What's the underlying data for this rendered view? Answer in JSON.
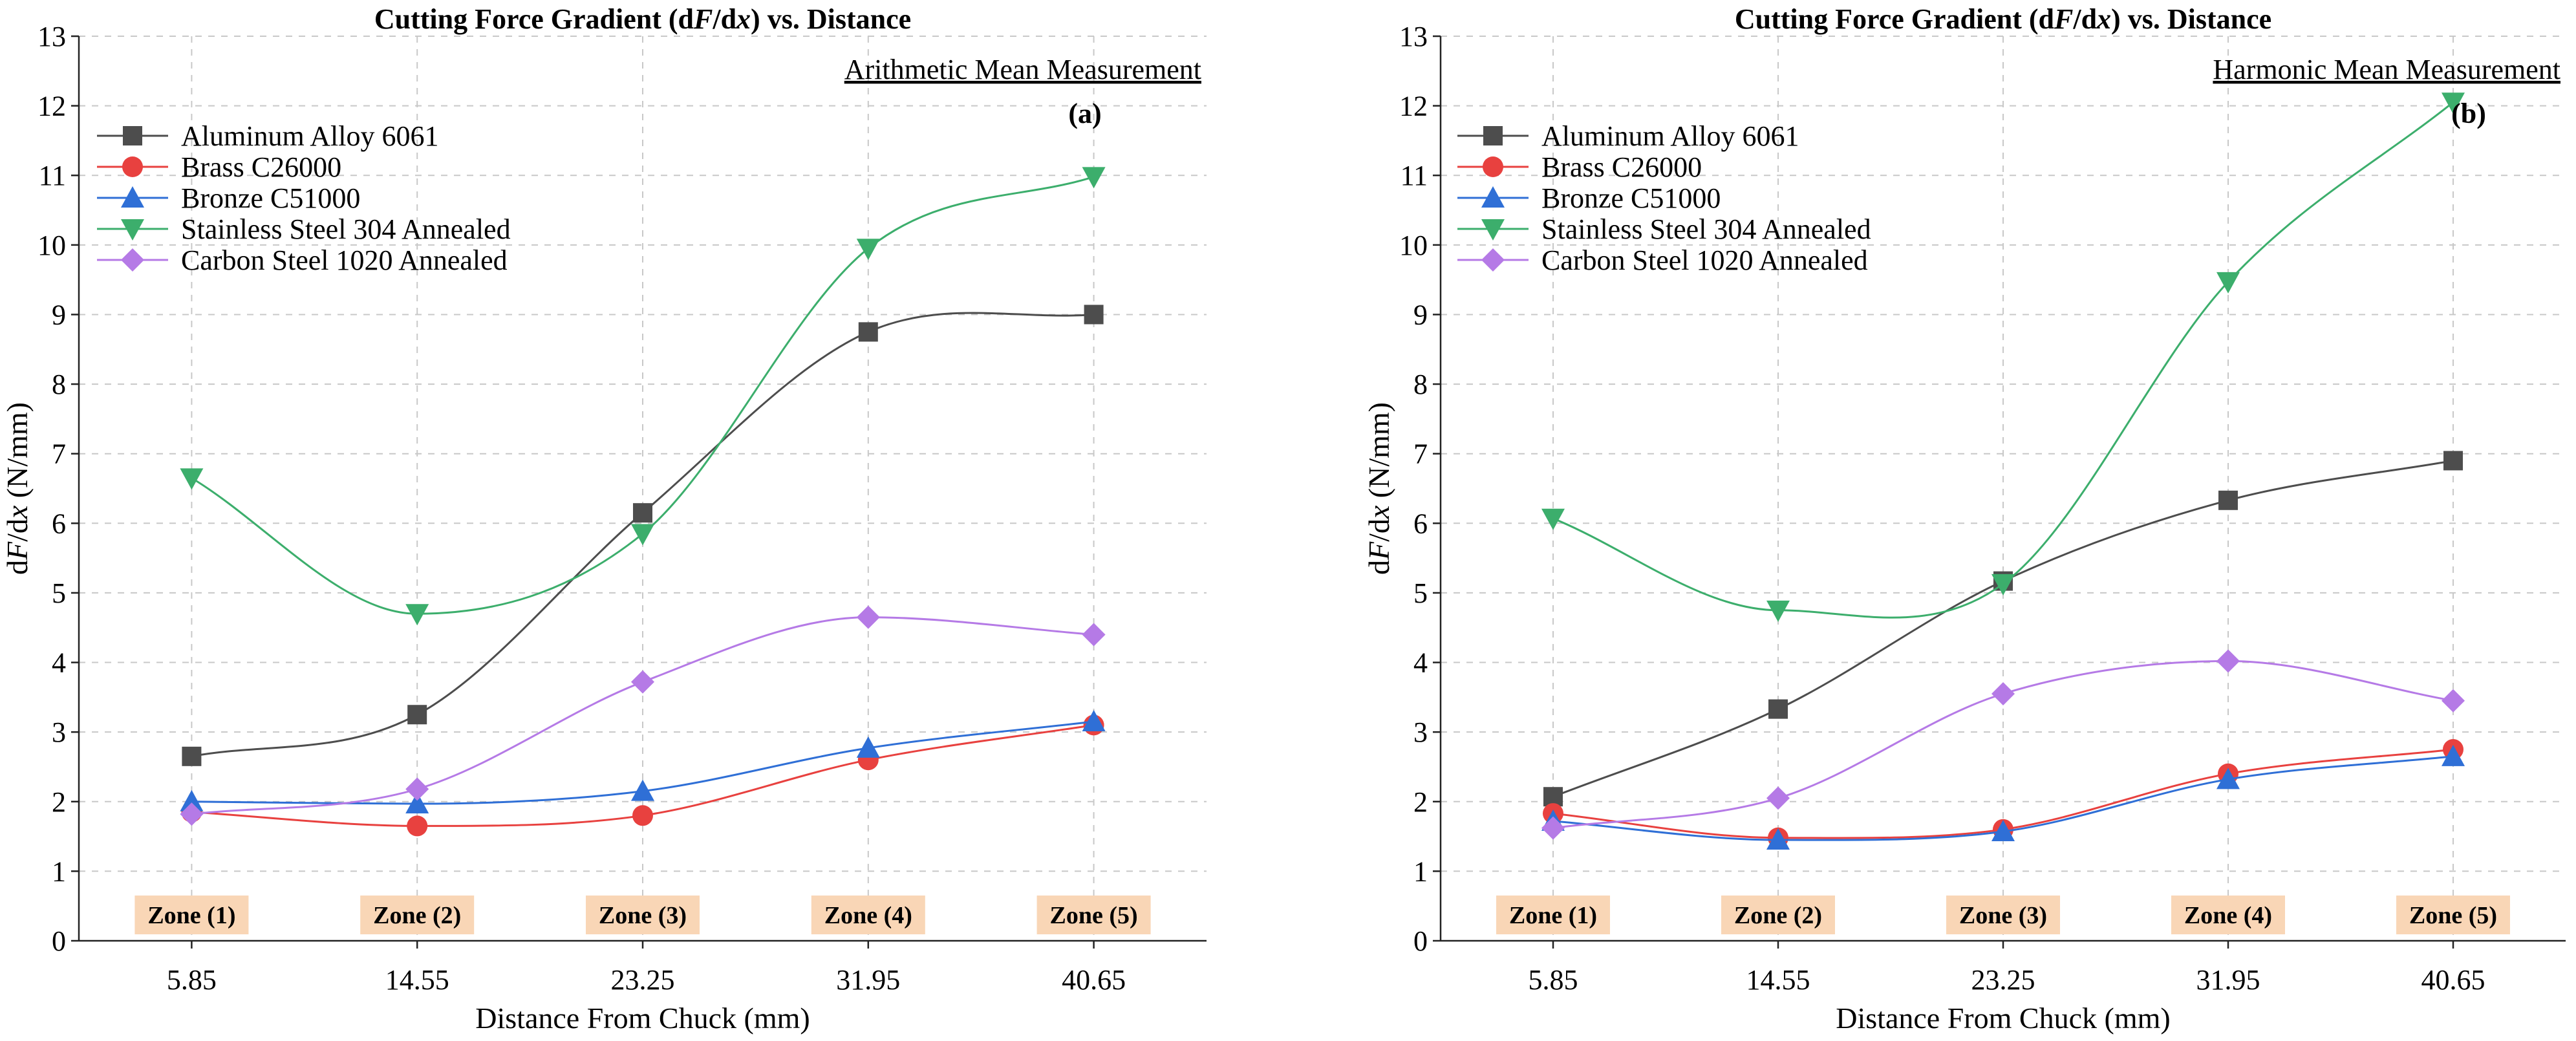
{
  "chart_data": [
    {
      "type": "line",
      "panel": "(a)",
      "title": "Cutting Force Gradient (dF/dx) vs. Distance",
      "title_parts": [
        "Cutting Force Gradient (d",
        "F",
        "/d",
        "x",
        ") vs. Distance"
      ],
      "subtitle": "Arithmetic Mean Measurement",
      "xlabel": "Distance From Chuck (mm)",
      "ylabel": "dF/dx (N/mm)",
      "ylabel_parts": [
        "d",
        "F",
        "/d",
        "x",
        " (N/mm)"
      ],
      "categories": [
        "5.85",
        "14.55",
        "23.25",
        "31.95",
        "40.65"
      ],
      "ylim": [
        0,
        13
      ],
      "yticks": [
        "0",
        "1",
        "2",
        "3",
        "4",
        "5",
        "6",
        "7",
        "8",
        "9",
        "10",
        "11",
        "12",
        "13"
      ],
      "zones": [
        "Zone (1)",
        "Zone (2)",
        "Zone (3)",
        "Zone (4)",
        "Zone (5)"
      ],
      "legend_position": "top-left",
      "grid": true,
      "series": [
        {
          "name": "Aluminum Alloy 6061",
          "color": "#4d4d4d",
          "marker": "square",
          "values": [
            2.65,
            3.25,
            6.15,
            8.75,
            9.0
          ]
        },
        {
          "name": "Brass C26000",
          "color": "#e8413f",
          "marker": "circle",
          "values": [
            1.85,
            1.65,
            1.8,
            2.6,
            3.1
          ]
        },
        {
          "name": "Bronze C51000",
          "color": "#2f6fd6",
          "marker": "triangle-up",
          "values": [
            2.0,
            1.97,
            2.15,
            2.77,
            3.15
          ]
        },
        {
          "name": "Stainless Steel 304 Annealed",
          "color": "#3cae6c",
          "marker": "triangle-down",
          "values": [
            6.65,
            4.7,
            5.85,
            9.95,
            10.98
          ]
        },
        {
          "name": "Carbon Steel 1020 Annealed",
          "color": "#b57ae6",
          "marker": "diamond",
          "values": [
            1.82,
            2.18,
            3.72,
            4.65,
            4.4
          ]
        }
      ]
    },
    {
      "type": "line",
      "panel": "(b)",
      "title": "Cutting Force Gradient (dF/dx) vs. Distance",
      "title_parts": [
        "Cutting Force Gradient (d",
        "F",
        "/d",
        "x",
        ") vs. Distance"
      ],
      "subtitle": "Harmonic Mean Measurement",
      "xlabel": "Distance From Chuck (mm)",
      "ylabel": "dF/dx (N/mm)",
      "ylabel_parts": [
        "d",
        "F",
        "/d",
        "x",
        " (N/mm)"
      ],
      "categories": [
        "5.85",
        "14.55",
        "23.25",
        "31.95",
        "40.65"
      ],
      "ylim": [
        0,
        13
      ],
      "yticks": [
        "0",
        "1",
        "2",
        "3",
        "4",
        "5",
        "6",
        "7",
        "8",
        "9",
        "10",
        "11",
        "12",
        "13"
      ],
      "zones": [
        "Zone (1)",
        "Zone (2)",
        "Zone (3)",
        "Zone (4)",
        "Zone (5)"
      ],
      "legend_position": "top-left",
      "grid": true,
      "series": [
        {
          "name": "Aluminum Alloy 6061",
          "color": "#4d4d4d",
          "marker": "square",
          "values": [
            2.07,
            3.33,
            5.17,
            6.33,
            6.9
          ]
        },
        {
          "name": "Brass C26000",
          "color": "#e8413f",
          "marker": "circle",
          "values": [
            1.83,
            1.48,
            1.6,
            2.4,
            2.75
          ]
        },
        {
          "name": "Bronze C51000",
          "color": "#2f6fd6",
          "marker": "triangle-up",
          "values": [
            1.72,
            1.45,
            1.57,
            2.32,
            2.65
          ]
        },
        {
          "name": "Stainless Steel 304 Annealed",
          "color": "#3cae6c",
          "marker": "triangle-down",
          "values": [
            6.07,
            4.75,
            5.13,
            9.47,
            12.05
          ]
        },
        {
          "name": "Carbon Steel 1020 Annealed",
          "color": "#b57ae6",
          "marker": "diamond",
          "values": [
            1.62,
            2.05,
            3.55,
            4.02,
            3.45
          ]
        }
      ]
    }
  ]
}
